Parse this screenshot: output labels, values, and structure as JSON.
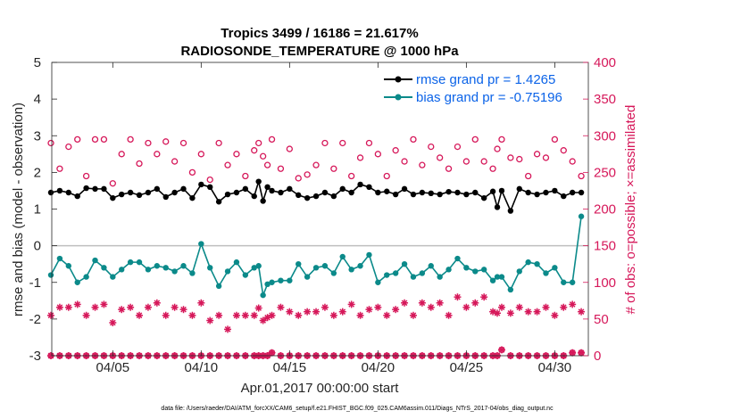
{
  "chart_data": {
    "type": "line",
    "title": "Tropics 3499 / 16186 = 21.617%",
    "subtitle": "RADIOSONDE_TEMPERATURE @ 1000 hPa",
    "xlabel": "Apr.01,2017 00:00:00 start",
    "ylabel": "rmse and bias (model - observation)",
    "ylabel_right": "# of obs: o=possible; ×=assimilated",
    "xlim": [
      0.55,
      30.9
    ],
    "ylim": [
      -3,
      5
    ],
    "ylim_right": [
      0,
      400
    ],
    "x_ticks": [
      4,
      9,
      14,
      19,
      24,
      29
    ],
    "x_tick_labels": [
      "04/05",
      "04/10",
      "04/15",
      "04/20",
      "04/25",
      "04/30"
    ],
    "y_ticks": [
      -3,
      -2,
      -1,
      0,
      1,
      2,
      3,
      4,
      5
    ],
    "y_tick_labels": [
      "-3",
      "-2",
      "-1",
      "0",
      "1",
      "2",
      "3",
      "4",
      "5"
    ],
    "y_right_ticks": [
      0,
      50,
      100,
      150,
      200,
      250,
      300,
      350,
      400
    ],
    "y_right_tick_labels": [
      "0",
      "50",
      "100",
      "150",
      "200",
      "250",
      "300",
      "350",
      "400"
    ],
    "zero_line": 0,
    "legend": {
      "position": "top-right",
      "entries": [
        "rmse grand pr = 1.4265",
        "bias grand pr = -0.75196"
      ]
    },
    "x": [
      0.5,
      1,
      1.5,
      2,
      2.5,
      3,
      3.5,
      4,
      4.5,
      5,
      5.5,
      6,
      6.5,
      7,
      7.5,
      8,
      8.5,
      9,
      9.5,
      10,
      10.5,
      11,
      11.5,
      12,
      12.25,
      12.5,
      12.75,
      13,
      13.5,
      14,
      14.5,
      15,
      15.5,
      16,
      16.5,
      17,
      17.5,
      18,
      18.5,
      19,
      19.5,
      20,
      20.5,
      21,
      21.5,
      22,
      22.5,
      23,
      23.5,
      24,
      24.5,
      25,
      25.5,
      25.75,
      26,
      26.5,
      27,
      27.5,
      28,
      28.5,
      29,
      29.5,
      30,
      30.5
    ],
    "series": [
      {
        "name": "rmse",
        "color": "#000000",
        "values": [
          1.45,
          1.5,
          1.45,
          1.35,
          1.57,
          1.55,
          1.55,
          1.3,
          1.4,
          1.45,
          1.38,
          1.45,
          1.55,
          1.33,
          1.45,
          1.55,
          1.3,
          1.67,
          1.6,
          1.2,
          1.4,
          1.45,
          1.55,
          1.35,
          1.75,
          1.22,
          1.6,
          1.5,
          1.45,
          1.55,
          1.38,
          1.3,
          1.35,
          1.45,
          1.35,
          1.55,
          1.45,
          1.67,
          1.6,
          1.45,
          1.48,
          1.4,
          1.55,
          1.4,
          1.45,
          1.43,
          1.4,
          1.47,
          1.45,
          1.4,
          1.45,
          1.3,
          1.48,
          1.05,
          1.5,
          0.95,
          1.55,
          1.45,
          1.4,
          1.45,
          1.5,
          1.35,
          1.45,
          1.45
        ]
      },
      {
        "name": "bias",
        "color": "#0b8a8a",
        "values": [
          -0.8,
          -0.35,
          -0.55,
          -1.0,
          -0.85,
          -0.4,
          -0.6,
          -0.85,
          -0.65,
          -0.45,
          -0.45,
          -0.65,
          -0.55,
          -0.6,
          -0.7,
          -0.55,
          -0.75,
          0.05,
          -0.6,
          -1.1,
          -0.7,
          -0.45,
          -0.8,
          -0.6,
          -0.55,
          -1.35,
          -1.05,
          -1.0,
          -0.95,
          -0.95,
          -0.5,
          -0.85,
          -0.6,
          -0.55,
          -0.75,
          -0.3,
          -0.65,
          -0.55,
          -0.25,
          -1.0,
          -0.8,
          -0.75,
          -0.5,
          -0.85,
          -0.75,
          -0.55,
          -0.85,
          -0.65,
          -0.35,
          -0.6,
          -0.7,
          -0.65,
          -0.95,
          -0.85,
          -0.85,
          -1.2,
          -0.7,
          -0.45,
          -0.5,
          -0.75,
          -0.6,
          -1.0,
          -1.0,
          0.8
        ]
      },
      {
        "name": "possible",
        "color": "#d6185a",
        "values": [
          290,
          255,
          285,
          295,
          245,
          295,
          295,
          235,
          275,
          295,
          262,
          290,
          275,
          292,
          265,
          290,
          250,
          275,
          240,
          290,
          260,
          275,
          245,
          280,
          290,
          272,
          260,
          295,
          255,
          282,
          242,
          247,
          260,
          290,
          255,
          290,
          245,
          270,
          290,
          275,
          245,
          280,
          265,
          295,
          260,
          285,
          270,
          255,
          285,
          265,
          295,
          265,
          255,
          282,
          295,
          270,
          268,
          245,
          275,
          270,
          295,
          280,
          265,
          245
        ]
      },
      {
        "name": "assimilated",
        "color": "#d6185a",
        "values": [
          55,
          66,
          66,
          70,
          55,
          66,
          70,
          45,
          63,
          66,
          55,
          66,
          72,
          55,
          66,
          63,
          55,
          72,
          48,
          55,
          36,
          55,
          55,
          55,
          65,
          48,
          52,
          55,
          66,
          60,
          55,
          60,
          60,
          66,
          55,
          60,
          70,
          55,
          63,
          66,
          55,
          63,
          72,
          55,
          72,
          66,
          72,
          55,
          80,
          66,
          72,
          80,
          60,
          58,
          66,
          58,
          66,
          60,
          60,
          66,
          55,
          66,
          70,
          60
        ]
      },
      {
        "name": "bottom-possible",
        "color": "#d6185a",
        "values": [
          0,
          0,
          0,
          0,
          0,
          0,
          0,
          0,
          0,
          0,
          0,
          0,
          0,
          0,
          0,
          0,
          0,
          0,
          0,
          0,
          0,
          0,
          0,
          0,
          0,
          0,
          0,
          4,
          0,
          0,
          0,
          0,
          0,
          0,
          0,
          0,
          0,
          0,
          0,
          0,
          0,
          0,
          0,
          0,
          0,
          0,
          0,
          0,
          0,
          0,
          0,
          0,
          0,
          0,
          8,
          0,
          0,
          0,
          0,
          0,
          0,
          0,
          4,
          4
        ]
      },
      {
        "name": "bottom-assimilated",
        "color": "#d6185a",
        "values": [
          0,
          0,
          0,
          0,
          0,
          0,
          0,
          0,
          0,
          0,
          0,
          0,
          0,
          0,
          0,
          0,
          0,
          0,
          0,
          0,
          0,
          0,
          0,
          0,
          0,
          0,
          0,
          4,
          0,
          0,
          0,
          0,
          0,
          0,
          0,
          0,
          0,
          0,
          0,
          0,
          0,
          0,
          0,
          0,
          0,
          0,
          0,
          0,
          0,
          0,
          0,
          0,
          0,
          0,
          8,
          0,
          0,
          0,
          0,
          0,
          0,
          0,
          4,
          4
        ]
      }
    ],
    "footer": "data file: /Users/raeder/DAI/ATM_forcXX/CAM6_setup/f.e21.FHIST_BGC.f09_025.CAM6assim.011/Diags_NTrS_2017-04/obs_diag_output.nc"
  }
}
